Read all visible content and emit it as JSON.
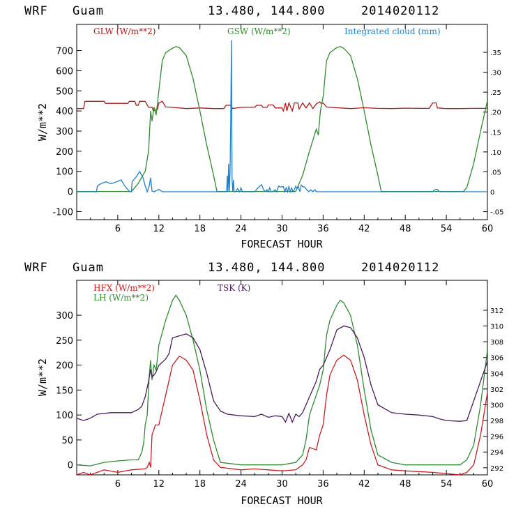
{
  "chart_data": [
    {
      "type": "line",
      "header": {
        "model": "WRF",
        "location": "Guam",
        "coords": "13.480, 144.800",
        "date": "2014020112"
      },
      "xlabel": "FORECAST HOUR",
      "ylabel": "W/m**2",
      "xlim": [
        0,
        60
      ],
      "ylim": [
        -140,
        830
      ],
      "y2lim": [
        -0.07,
        0.42
      ],
      "xticks": [
        "6",
        "12",
        "18",
        "24",
        "30",
        "36",
        "42",
        "48",
        "54",
        "60"
      ],
      "yticks": [
        "-100",
        "0",
        "100",
        "200",
        "300",
        "400",
        "500",
        "600",
        "700"
      ],
      "y2ticks": [
        "-.05",
        "0",
        ".05",
        ".10",
        ".15",
        ".20",
        ".25",
        ".30",
        ".35"
      ],
      "series": [
        {
          "name": "GLW (W/m**2)",
          "color": "#b01818",
          "axis": "left",
          "x": [
            0,
            1,
            1.2,
            4,
            4.2,
            7.5,
            7.7,
            8.5,
            8.7,
            9,
            9.2,
            10,
            10.5,
            11,
            11.2,
            11.8,
            12,
            12.5,
            13,
            14,
            16,
            18,
            20,
            21.5,
            21.8,
            22.5,
            22.8,
            24,
            26,
            26.3,
            27,
            27.2,
            27.8,
            28,
            28.7,
            29,
            30,
            30.2,
            30.5,
            30.7,
            31,
            31.5,
            31.8,
            32.3,
            32.5,
            33,
            33.5,
            34,
            34.5,
            35,
            35.5,
            35.7,
            36,
            36.5,
            37,
            38,
            40,
            42,
            44,
            46,
            48,
            50,
            51.5,
            52,
            52.5,
            52.7,
            54,
            56,
            58,
            60
          ],
          "values": [
            412,
            412,
            448,
            448,
            438,
            438,
            448,
            448,
            428,
            428,
            448,
            448,
            418,
            418,
            400,
            408,
            440,
            448,
            420,
            418,
            412,
            415,
            412,
            412,
            428,
            428,
            412,
            418,
            418,
            428,
            428,
            418,
            418,
            430,
            430,
            415,
            415,
            400,
            440,
            400,
            440,
            400,
            440,
            440,
            410,
            440,
            415,
            440,
            412,
            435,
            445,
            438,
            440,
            420,
            418,
            416,
            412,
            416,
            413,
            412,
            414,
            413,
            413,
            440,
            440,
            415,
            412,
            412,
            413,
            413
          ]
        },
        {
          "name": "GSW (W/m**2)",
          "color": "#2e8b2e",
          "axis": "left",
          "x": [
            0,
            8,
            9,
            10,
            10.5,
            10.8,
            11,
            11.3,
            11.6,
            12,
            12.5,
            13,
            14,
            14.5,
            15,
            16,
            17,
            18,
            19,
            20,
            20.5,
            32,
            33,
            34,
            35,
            35.3,
            35.6,
            36,
            36.5,
            37,
            38,
            38.5,
            39,
            40,
            41,
            42,
            43,
            44,
            44.5,
            56.5,
            57,
            58,
            59,
            60
          ],
          "values": [
            0,
            0,
            40,
            100,
            200,
            400,
            350,
            420,
            380,
            500,
            650,
            690,
            712,
            720,
            715,
            675,
            560,
            400,
            230,
            80,
            0,
            0,
            80,
            200,
            310,
            280,
            400,
            470,
            650,
            690,
            715,
            720,
            712,
            675,
            560,
            400,
            230,
            80,
            0,
            0,
            20,
            140,
            300,
            450
          ]
        },
        {
          "name": "Integrated cloud (mm)",
          "color": "#1e7fd0",
          "axis": "right",
          "x": [
            0,
            2.9,
            3,
            3.3,
            3.8,
            4.3,
            5,
            5.8,
            6.5,
            7,
            7.5,
            7.8,
            8,
            8.1,
            8.8,
            9.2,
            9.7,
            10,
            10.3,
            10.6,
            10.8,
            11,
            11.3,
            12,
            12.5,
            13,
            21.9,
            22,
            22.1,
            22.2,
            22.3,
            22.4,
            22.5,
            22.6,
            22.7,
            22.8,
            22.9,
            23,
            23.2,
            23.5,
            23.8,
            24,
            24.2,
            24.6,
            26,
            26.5,
            27,
            27.3,
            27.6,
            27.8,
            28,
            28.2,
            28.4,
            28.6,
            29,
            29.2,
            29.5,
            29.8,
            30.2,
            30.4,
            30.6,
            30.8,
            31,
            31.2,
            31.4,
            31.6,
            31.8,
            32,
            32.2,
            32.4,
            32.6,
            32.8,
            33,
            33.3,
            33.6,
            33.9,
            34.2,
            34.5,
            34.8,
            35,
            35.5,
            52,
            52.3,
            52.7,
            53,
            60
          ],
          "values": [
            0,
            0,
            0.013,
            0.018,
            0.022,
            0.025,
            0.02,
            0.025,
            0.03,
            0.015,
            0.005,
            0,
            0,
            0.025,
            0.04,
            0.051,
            0.035,
            0.015,
            0,
            0.015,
            0.035,
            0.002,
            0,
            0.006,
            0,
            0,
            0,
            0.04,
            0,
            0.07,
            0,
            0.05,
            0.18,
            0.38,
            0.03,
            0,
            0.03,
            0,
            0,
            0.008,
            0,
            0.01,
            0,
            0,
            0,
            0.01,
            0.018,
            0.005,
            0,
            0.005,
            0,
            0.01,
            0,
            0,
            0.005,
            0,
            0.014,
            0.012,
            0.013,
            0,
            0.01,
            0,
            0.013,
            0,
            0.01,
            0,
            0.005,
            0.014,
            0.008,
            0.012,
            0,
            0.017,
            0.013,
            0.012,
            0.005,
            0,
            0.005,
            0,
            0.005,
            0,
            0,
            0,
            0.005,
            0.006,
            0,
            0
          ]
        }
      ]
    },
    {
      "type": "line",
      "header": {
        "model": "WRF",
        "location": "Guam",
        "coords": "13.480, 144.800",
        "date": "2014020112"
      },
      "xlabel": "FORECAST HOUR",
      "ylabel": "W/m**2",
      "xlim": [
        0,
        60
      ],
      "ylim": [
        -20,
        370
      ],
      "y2lim": [
        291.1,
        315.8
      ],
      "xticks": [
        "6",
        "12",
        "18",
        "24",
        "30",
        "36",
        "42",
        "48",
        "54",
        "60"
      ],
      "yticks": [
        "0",
        "50",
        "100",
        "150",
        "200",
        "250",
        "300"
      ],
      "y2ticks": [
        "292",
        "294",
        "296",
        "298",
        "300",
        "302",
        "304",
        "306",
        "308",
        "310",
        "312"
      ],
      "series": [
        {
          "name": "HFX (W/m**2)",
          "color": "#c81e1e",
          "axis": "left",
          "x": [
            0,
            1,
            2,
            4,
            6,
            8,
            10,
            10.3,
            10.6,
            10.8,
            11,
            11.5,
            12,
            13,
            14,
            15,
            16,
            17,
            18,
            19,
            20,
            21,
            24,
            26,
            30,
            32,
            33,
            33.5,
            34,
            35,
            35.5,
            36,
            36.5,
            37,
            38,
            39,
            40,
            41,
            42,
            43,
            44,
            46,
            48,
            52,
            56,
            57,
            58,
            59,
            60
          ],
          "values": [
            -20,
            -15,
            -20,
            -10,
            -15,
            -10,
            -8,
            -5,
            5,
            -5,
            60,
            80,
            80,
            140,
            200,
            218,
            210,
            190,
            130,
            60,
            10,
            -5,
            -10,
            -8,
            -12,
            -10,
            0,
            10,
            35,
            30,
            60,
            80,
            140,
            180,
            210,
            220,
            210,
            170,
            100,
            40,
            0,
            -10,
            -12,
            -15,
            -20,
            -15,
            0,
            60,
            145
          ]
        },
        {
          "name": "LH (W/m**2)",
          "color": "#2e8b2e",
          "axis": "left",
          "x": [
            0,
            2,
            4,
            6,
            8,
            9,
            9.5,
            9.8,
            10,
            10.3,
            10.6,
            10.8,
            11,
            11.3,
            11.6,
            12,
            13,
            14,
            14.5,
            15,
            16,
            17,
            18,
            19,
            20,
            21,
            24,
            26,
            30,
            32,
            33,
            33.5,
            34,
            35,
            35.5,
            36,
            36.5,
            37,
            38,
            38.5,
            39,
            40,
            41,
            42,
            43,
            44,
            46,
            48,
            52,
            56,
            57,
            58,
            59,
            60
          ],
          "values": [
            0,
            -2,
            5,
            8,
            10,
            10,
            25,
            45,
            80,
            100,
            180,
            210,
            170,
            200,
            190,
            240,
            290,
            330,
            340,
            330,
            300,
            250,
            190,
            110,
            50,
            5,
            0,
            0,
            0,
            5,
            20,
            50,
            100,
            140,
            160,
            190,
            260,
            290,
            320,
            330,
            325,
            300,
            240,
            150,
            70,
            20,
            5,
            0,
            0,
            0,
            10,
            40,
            120,
            230
          ]
        },
        {
          "name": "TSK (K)",
          "color": "#4a1a5a",
          "axis": "right",
          "x": [
            0,
            1,
            2,
            3,
            5,
            8,
            9,
            9.5,
            10,
            10.5,
            10.8,
            11,
            11.5,
            12,
            13,
            13.5,
            14,
            16,
            17,
            18,
            19,
            20,
            21,
            22,
            24,
            26,
            27,
            28,
            29,
            30,
            30.5,
            31,
            31.5,
            32,
            32.5,
            33,
            34,
            35,
            35.5,
            36,
            37,
            38,
            39,
            40,
            41,
            42,
            43,
            44,
            46,
            48,
            50,
            52,
            53,
            54,
            56,
            57,
            58,
            59,
            60
          ],
          "values": [
            298.3,
            298,
            298.3,
            298.8,
            299,
            299,
            299.4,
            299.8,
            301,
            303,
            304.5,
            303.5,
            304,
            305,
            305.8,
            306.5,
            308.5,
            309,
            308.5,
            307,
            304,
            300.5,
            299.2,
            298.8,
            298.6,
            298.5,
            298.8,
            298.4,
            298.6,
            298.5,
            297.8,
            298.9,
            297.8,
            298.8,
            298.5,
            299,
            301,
            303,
            304.5,
            305,
            307,
            309.5,
            310,
            309.8,
            308.5,
            306,
            302.5,
            300,
            299,
            298.8,
            298.7,
            298.5,
            298.2,
            298,
            297.9,
            298,
            300.5,
            303,
            305.5
          ]
        }
      ]
    }
  ]
}
